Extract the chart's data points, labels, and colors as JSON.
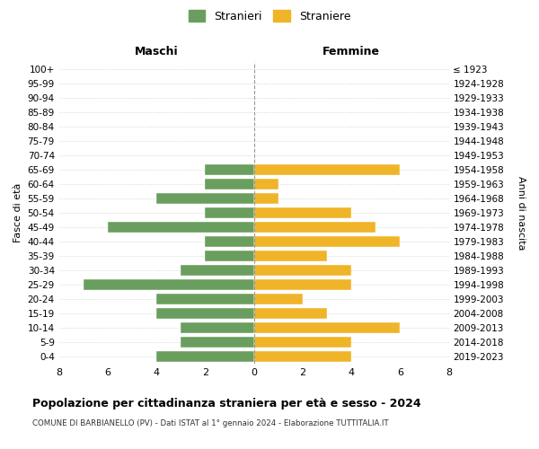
{
  "age_groups": [
    "100+",
    "95-99",
    "90-94",
    "85-89",
    "80-84",
    "75-79",
    "70-74",
    "65-69",
    "60-64",
    "55-59",
    "50-54",
    "45-49",
    "40-44",
    "35-39",
    "30-34",
    "25-29",
    "20-24",
    "15-19",
    "10-14",
    "5-9",
    "0-4"
  ],
  "birth_years": [
    "≤ 1923",
    "1924-1928",
    "1929-1933",
    "1934-1938",
    "1939-1943",
    "1944-1948",
    "1949-1953",
    "1954-1958",
    "1959-1963",
    "1964-1968",
    "1969-1973",
    "1974-1978",
    "1979-1983",
    "1984-1988",
    "1989-1993",
    "1994-1998",
    "1999-2003",
    "2004-2008",
    "2009-2013",
    "2014-2018",
    "2019-2023"
  ],
  "maschi": [
    0,
    0,
    0,
    0,
    0,
    0,
    0,
    2,
    2,
    4,
    2,
    6,
    2,
    2,
    3,
    7,
    4,
    4,
    3,
    3,
    4
  ],
  "femmine": [
    0,
    0,
    0,
    0,
    0,
    0,
    0,
    6,
    1,
    1,
    4,
    5,
    6,
    3,
    4,
    4,
    2,
    3,
    6,
    4,
    4
  ],
  "color_maschi": "#6a9e5e",
  "color_femmine": "#f0b429",
  "title_bold": "Popolazione per cittadinanza straniera per età e sesso - 2024",
  "subtitle": "COMUNE DI BARBIANELLO (PV) - Dati ISTAT al 1° gennaio 2024 - Elaborazione TUTTITALIA.IT",
  "ylabel_left": "Fasce di età",
  "ylabel_right": "Anni di nascita",
  "xlabel_max": 8,
  "legend_stranieri": "Stranieri",
  "legend_straniere": "Straniere",
  "maschi_label": "Maschi",
  "femmine_label": "Femmine",
  "background_color": "#ffffff",
  "grid_color": "#cccccc"
}
